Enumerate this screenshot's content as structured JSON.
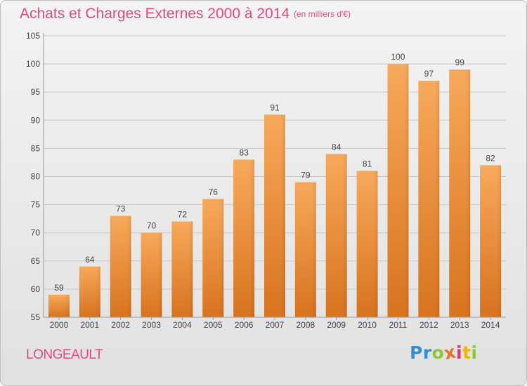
{
  "header": {
    "title": "Achats et Charges Externes 2000 à 2014",
    "subtitle": "(en milliers d'€)"
  },
  "footer": {
    "place": "LONGEAULT",
    "logo_letters": [
      "P",
      "r",
      "o",
      "x",
      "i",
      "t",
      "i"
    ],
    "logo_colors": [
      "#2e8fd8",
      "#2e8fd8",
      "#8cc63f",
      "#e8712a",
      "#e0356f",
      "#f2b400",
      "#8cc63f"
    ]
  },
  "colors": {
    "bar_top": "#f7a95a",
    "bar_bottom": "#d8731e",
    "grid": "#c8c8c8",
    "text": "#444444",
    "title": "#e04a7f"
  },
  "chart_data": {
    "type": "bar",
    "title": "Achats et Charges Externes 2000 à 2014",
    "subtitle": "(en milliers d'€)",
    "categories": [
      "2000",
      "2001",
      "2002",
      "2003",
      "2004",
      "2005",
      "2006",
      "2007",
      "2008",
      "2009",
      "2010",
      "2011",
      "2012",
      "2013",
      "2014"
    ],
    "values": [
      59,
      64,
      73,
      70,
      72,
      76,
      83,
      91,
      79,
      84,
      81,
      100,
      97,
      99,
      82
    ],
    "data_labels": [
      "59",
      "64",
      "73",
      "70",
      "72",
      "76",
      "83",
      "91",
      "79",
      "84",
      "81",
      "100",
      "97",
      "99",
      "82"
    ],
    "ylim": [
      55,
      105
    ],
    "yticks": [
      55,
      60,
      65,
      70,
      75,
      80,
      85,
      90,
      95,
      100,
      105
    ],
    "grid": true,
    "legend": false
  }
}
